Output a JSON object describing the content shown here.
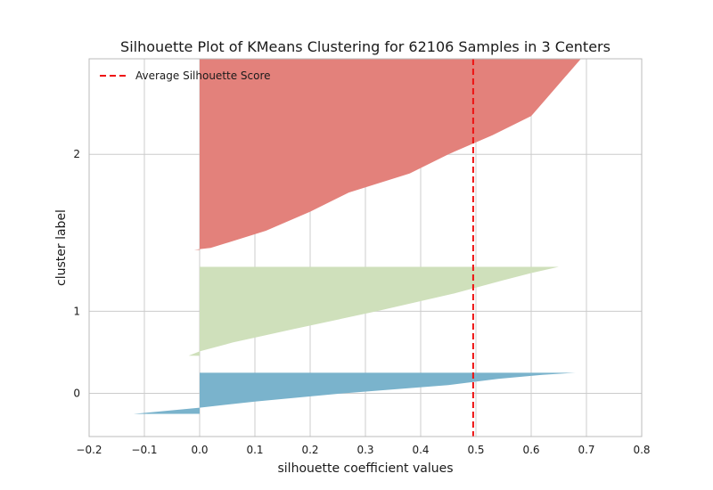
{
  "chart_data": {
    "type": "area",
    "title": "Silhouette Plot of KMeans Clustering for 62106 Samples in 3 Centers",
    "xlabel": "silhouette coefficient values",
    "ylabel": "cluster label",
    "xlim": [
      -0.2,
      0.8
    ],
    "xticks": [
      "−0.2",
      "−0.1",
      "0.0",
      "0.1",
      "0.2",
      "0.3",
      "0.4",
      "0.5",
      "0.6",
      "0.7",
      "0.8"
    ],
    "yticks": [
      {
        "label": "0",
        "cluster": 0
      },
      {
        "label": "1",
        "cluster": 1
      },
      {
        "label": "2",
        "cluster": 2
      }
    ],
    "grid": true,
    "legend": {
      "position": "top-left",
      "entries": [
        "Average Silhouette Score"
      ]
    },
    "average_silhouette_score": 0.495,
    "colors": {
      "cluster_0": "#7ab3cc",
      "cluster_1": "#cfe0bb",
      "cluster_2": "#e3817b",
      "average_line": "#ee1111",
      "grid": "#cccccc",
      "frame": "#bbbbbb"
    },
    "series": [
      {
        "cluster": 0,
        "samples_fraction": 0.128,
        "profile": [
          [
            0.0,
            -0.12
          ],
          [
            0.15,
            0.0
          ],
          [
            0.3,
            0.1
          ],
          [
            0.5,
            0.26
          ],
          [
            0.7,
            0.45
          ],
          [
            0.85,
            0.54
          ],
          [
            0.95,
            0.62
          ],
          [
            1.0,
            0.68
          ]
        ]
      },
      {
        "cluster": 1,
        "samples_fraction": 0.277,
        "profile": [
          [
            0.0,
            -0.02
          ],
          [
            0.05,
            0.0
          ],
          [
            0.15,
            0.06
          ],
          [
            0.3,
            0.17
          ],
          [
            0.5,
            0.32
          ],
          [
            0.7,
            0.46
          ],
          [
            0.85,
            0.55
          ],
          [
            0.93,
            0.6
          ],
          [
            1.0,
            0.65
          ]
        ]
      },
      {
        "cluster": 2,
        "samples_fraction": 0.595,
        "profile": [
          [
            0.0,
            -0.01
          ],
          [
            0.01,
            0.02
          ],
          [
            0.1,
            0.12
          ],
          [
            0.2,
            0.2
          ],
          [
            0.3,
            0.27
          ],
          [
            0.4,
            0.38
          ],
          [
            0.5,
            0.45
          ],
          [
            0.6,
            0.53
          ],
          [
            0.7,
            0.6
          ],
          [
            0.8,
            0.63
          ],
          [
            0.9,
            0.66
          ],
          [
            1.0,
            0.69
          ]
        ]
      }
    ]
  }
}
